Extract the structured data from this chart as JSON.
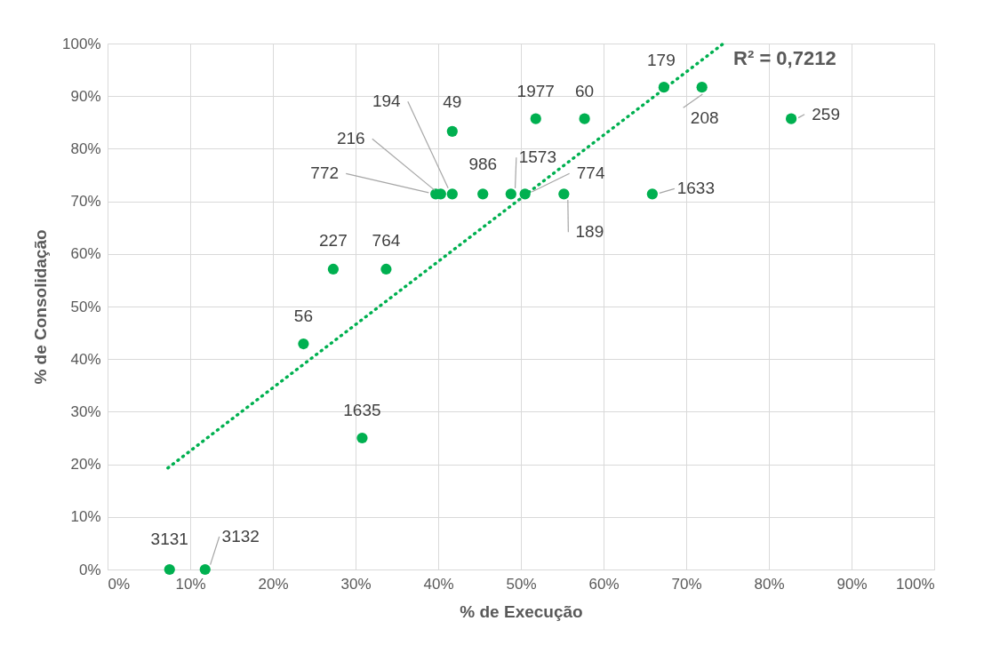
{
  "chart_data": {
    "type": "scatter",
    "xlabel": "% de Execução",
    "ylabel": "% de Consolidação",
    "xlim": [
      0,
      100
    ],
    "ylim": [
      0,
      100
    ],
    "xticks": [
      {
        "value": 0,
        "label": "0%"
      },
      {
        "value": 10,
        "label": "10%"
      },
      {
        "value": 20,
        "label": "20%"
      },
      {
        "value": 30,
        "label": "30%"
      },
      {
        "value": 40,
        "label": "40%"
      },
      {
        "value": 50,
        "label": "50%"
      },
      {
        "value": 60,
        "label": "60%"
      },
      {
        "value": 70,
        "label": "70%"
      },
      {
        "value": 80,
        "label": "80%"
      },
      {
        "value": 90,
        "label": "90%"
      },
      {
        "value": 100,
        "label": "100%"
      }
    ],
    "yticks": [
      {
        "value": 0,
        "label": "0%"
      },
      {
        "value": 10,
        "label": "10%"
      },
      {
        "value": 20,
        "label": "20%"
      },
      {
        "value": 30,
        "label": "30%"
      },
      {
        "value": 40,
        "label": "40%"
      },
      {
        "value": 50,
        "label": "50%"
      },
      {
        "value": 60,
        "label": "60%"
      },
      {
        "value": 70,
        "label": "70%"
      },
      {
        "value": 80,
        "label": "80%"
      },
      {
        "value": 90,
        "label": "90%"
      },
      {
        "value": 100,
        "label": "100%"
      }
    ],
    "grid": true,
    "series": [
      {
        "color": "#00b050",
        "marker": "circle",
        "x": [
          7.5,
          11.8,
          30.8,
          23.7,
          27.3,
          33.7,
          39.7,
          40.3,
          41.7,
          41.7,
          45.4,
          48.8,
          50.5,
          55.2,
          65.9,
          51.8,
          57.7,
          67.3,
          71.9,
          82.7
        ],
        "values": [
          0,
          0,
          25,
          42.9,
          57.1,
          57.1,
          71.4,
          71.4,
          71.4,
          83.3,
          71.4,
          71.4,
          71.4,
          71.4,
          71.4,
          85.7,
          85.7,
          91.7,
          91.7,
          85.7
        ]
      },
      {
        "type": "line",
        "color": "#00b050",
        "line_style": "dotted",
        "x": [
          7.3,
          74.5
        ],
        "values": [
          19.3,
          100
        ]
      }
    ],
    "annotations": [
      {
        "text": "3131",
        "x": 7.5,
        "y": 0
      },
      {
        "text": "3132",
        "x": 11.8,
        "y": 0
      },
      {
        "text": "1635",
        "x": 30.8,
        "y": 25
      },
      {
        "text": "56",
        "x": 23.7,
        "y": 42.9
      },
      {
        "text": "227",
        "x": 27.3,
        "y": 57.1
      },
      {
        "text": "764",
        "x": 33.7,
        "y": 57.1
      },
      {
        "text": "772",
        "x": 39.7,
        "y": 71.4
      },
      {
        "text": "216",
        "x": 40.3,
        "y": 71.4
      },
      {
        "text": "194",
        "x": 41.7,
        "y": 71.4
      },
      {
        "text": "49",
        "x": 41.7,
        "y": 83.3
      },
      {
        "text": "986",
        "x": 45.4,
        "y": 71.4
      },
      {
        "text": "1573",
        "x": 48.8,
        "y": 71.4
      },
      {
        "text": "774",
        "x": 50.5,
        "y": 71.4
      },
      {
        "text": "189",
        "x": 55.2,
        "y": 71.4
      },
      {
        "text": "1633",
        "x": 65.9,
        "y": 71.4
      },
      {
        "text": "1977",
        "x": 51.8,
        "y": 85.7
      },
      {
        "text": "60",
        "x": 57.7,
        "y": 85.7
      },
      {
        "text": "179",
        "x": 67.3,
        "y": 91.7
      },
      {
        "text": "208",
        "x": 71.9,
        "y": 91.7
      },
      {
        "text": "259",
        "x": 82.7,
        "y": 85.7
      },
      {
        "text": "R² = 0,7212",
        "x": 74.5,
        "y": 100
      }
    ]
  }
}
